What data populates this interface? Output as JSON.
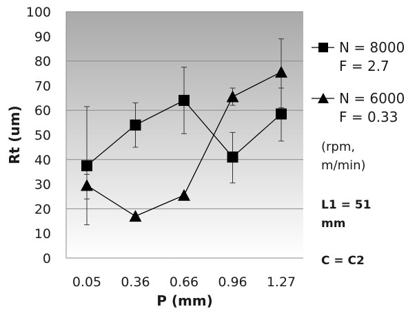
{
  "chart_data": {
    "type": "line",
    "categories": [
      "0.05",
      "0.36",
      "0.66",
      "0.96",
      "1.27"
    ],
    "xlabel": "P (mm)",
    "ylabel": "Rt (um)",
    "ylim": [
      0,
      100
    ],
    "yticks": [
      "0",
      "10",
      "20",
      "30",
      "40",
      "50",
      "60",
      "70",
      "80",
      "90",
      "100"
    ],
    "grid": "horizontal, every 20",
    "background": "vertical gradient, dark grey at top to white at bottom",
    "series": [
      {
        "name_lines": [
          "N = 8000",
          "F = 2.7"
        ],
        "marker": "square",
        "color": "#000000",
        "values": [
          37.5,
          54,
          64,
          41,
          58.5
        ],
        "err_low": [
          24,
          45,
          50.5,
          30.5,
          47.5
        ],
        "err_high": [
          61.5,
          63,
          77.5,
          51,
          69
        ]
      },
      {
        "name_lines": [
          "N = 6000",
          "F = 0.33"
        ],
        "marker": "triangle",
        "color": "#000000",
        "values": [
          29.5,
          17,
          25.5,
          65.5,
          75.5
        ],
        "err_low": [
          13.5,
          null,
          null,
          62,
          61
        ],
        "err_high": [
          34,
          null,
          null,
          69,
          89
        ]
      }
    ],
    "legend_position": "right",
    "notes": {
      "units_line1": "(rpm,",
      "units_line2": "m/min)",
      "l1_line1": "L1 = 51",
      "l1_line2": "mm",
      "c_label": "C = C2"
    }
  }
}
